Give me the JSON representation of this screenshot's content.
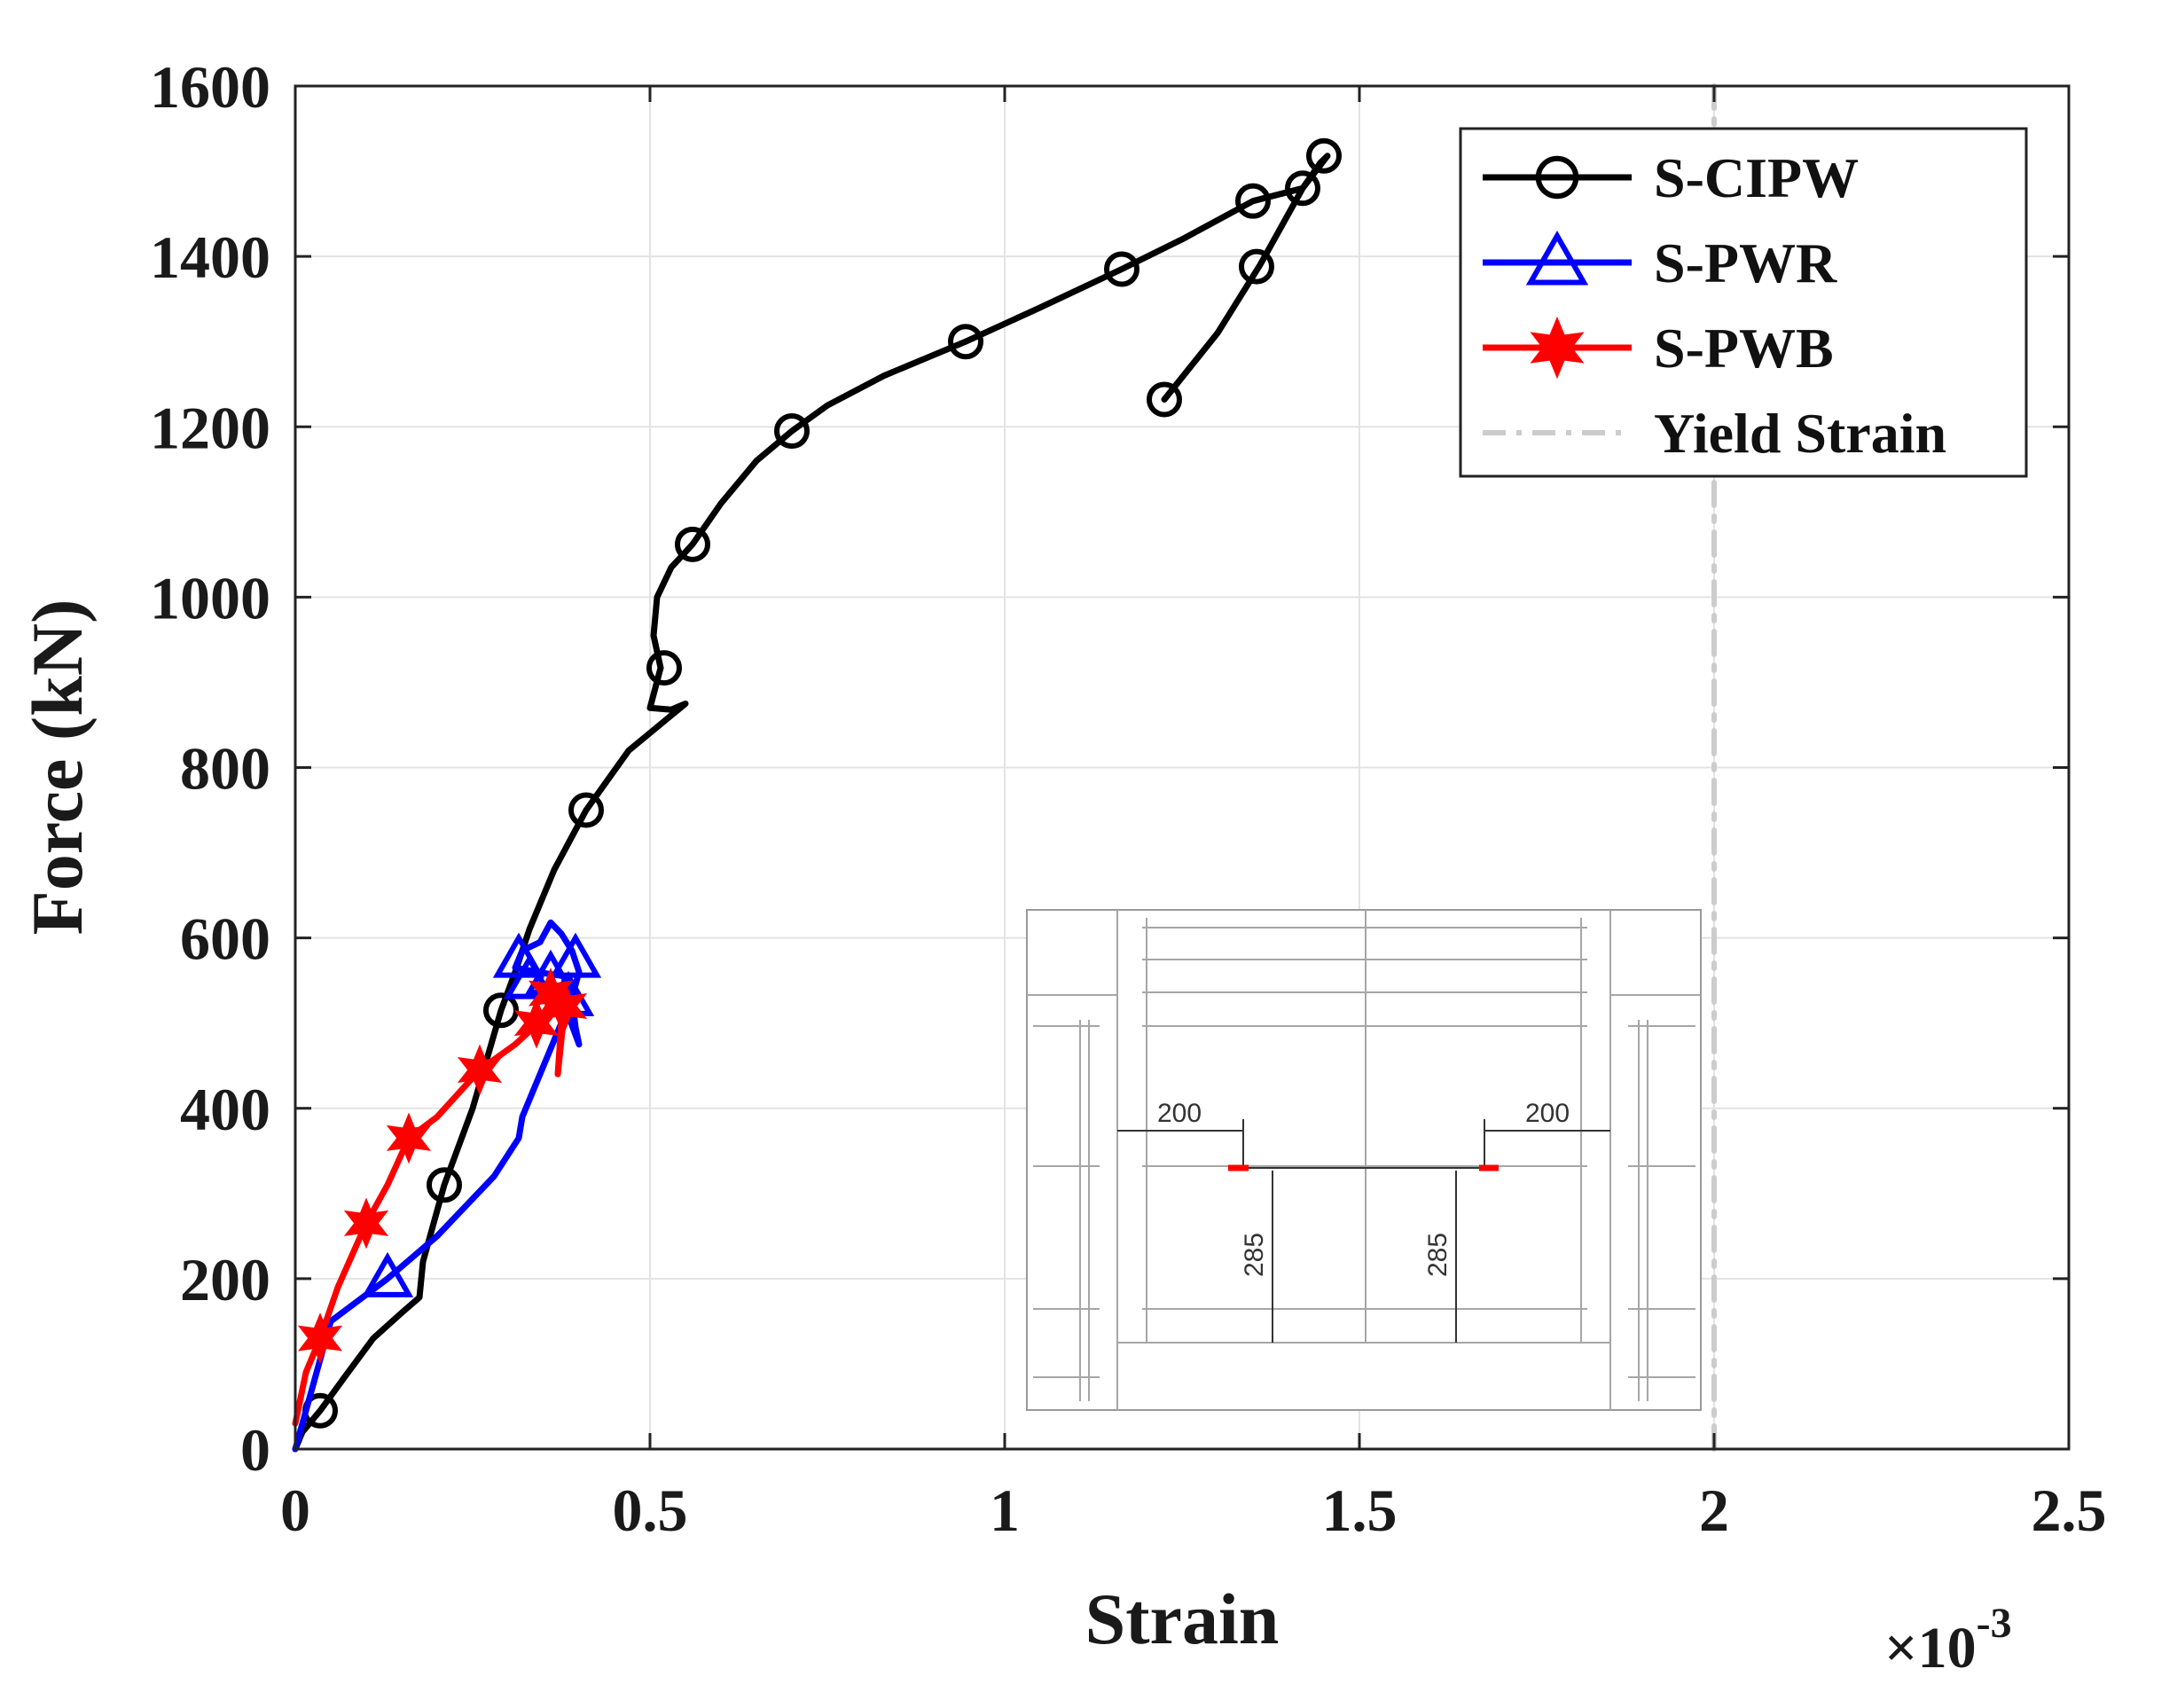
{
  "chart_data": {
    "type": "line",
    "title": "",
    "xlabel": "Strain",
    "ylabel": "Force (kN)",
    "x_multiplier_prefix": "×10",
    "x_multiplier_exponent": "-3",
    "xlim": [
      0,
      2.5
    ],
    "ylim": [
      0,
      1600
    ],
    "xticks": [
      0,
      0.5,
      1,
      1.5,
      2,
      2.5
    ],
    "xtick_labels": [
      "0",
      "0.5",
      "1",
      "1.5",
      "2",
      "2.5"
    ],
    "yticks": [
      0,
      200,
      400,
      600,
      800,
      1000,
      1200,
      1400,
      1600
    ],
    "ytick_labels": [
      "0",
      "200",
      "400",
      "600",
      "800",
      "1000",
      "1200",
      "1400",
      "1600"
    ],
    "grid": true,
    "legend_position": "top-right",
    "series": [
      {
        "name": "S-CIPW",
        "color": "#000000",
        "marker": "circle",
        "line": [
          [
            0,
            0
          ],
          [
            0.01,
            20
          ],
          [
            0.035,
            45
          ],
          [
            0.07,
            85
          ],
          [
            0.11,
            130
          ],
          [
            0.15,
            160
          ],
          [
            0.175,
            178
          ],
          [
            0.18,
            220
          ],
          [
            0.21,
            310
          ],
          [
            0.25,
            400
          ],
          [
            0.29,
            515
          ],
          [
            0.31,
            560
          ],
          [
            0.33,
            610
          ],
          [
            0.365,
            680
          ],
          [
            0.41,
            750
          ],
          [
            0.47,
            820
          ],
          [
            0.55,
            875
          ],
          [
            0.53,
            868
          ],
          [
            0.5,
            870
          ],
          [
            0.515,
            917
          ],
          [
            0.505,
            955
          ],
          [
            0.51,
            1000
          ],
          [
            0.53,
            1035
          ],
          [
            0.56,
            1062
          ],
          [
            0.6,
            1110
          ],
          [
            0.65,
            1160
          ],
          [
            0.7,
            1195
          ],
          [
            0.75,
            1225
          ],
          [
            0.83,
            1260
          ],
          [
            0.945,
            1300
          ],
          [
            1.05,
            1340
          ],
          [
            1.165,
            1385
          ],
          [
            1.25,
            1420
          ],
          [
            1.35,
            1465
          ],
          [
            1.42,
            1480
          ],
          [
            1.445,
            1510
          ],
          [
            1.455,
            1518
          ],
          [
            1.42,
            1480
          ],
          [
            1.36,
            1390
          ],
          [
            1.3,
            1310
          ],
          [
            1.225,
            1232
          ]
        ],
        "markers": [
          [
            0.035,
            45
          ],
          [
            0.21,
            310
          ],
          [
            0.29,
            515
          ],
          [
            0.41,
            750
          ],
          [
            0.52,
            917
          ],
          [
            0.56,
            1062
          ],
          [
            0.7,
            1195
          ],
          [
            0.945,
            1300
          ],
          [
            1.165,
            1385
          ],
          [
            1.35,
            1465
          ],
          [
            1.45,
            1518
          ],
          [
            1.42,
            1480
          ],
          [
            1.355,
            1388
          ],
          [
            1.225,
            1232
          ]
        ]
      },
      {
        "name": "S-PWR",
        "color": "#0000ff",
        "marker": "triangle",
        "line": [
          [
            0,
            0
          ],
          [
            0.02,
            60
          ],
          [
            0.05,
            150
          ],
          [
            0.13,
            200
          ],
          [
            0.2,
            250
          ],
          [
            0.28,
            320
          ],
          [
            0.315,
            365
          ],
          [
            0.32,
            390
          ],
          [
            0.35,
            450
          ],
          [
            0.375,
            500
          ],
          [
            0.38,
            555
          ],
          [
            0.34,
            560
          ],
          [
            0.31,
            565
          ],
          [
            0.32,
            585
          ],
          [
            0.345,
            595
          ],
          [
            0.36,
            618
          ],
          [
            0.375,
            605
          ],
          [
            0.39,
            585
          ],
          [
            0.4,
            560
          ],
          [
            0.39,
            530
          ],
          [
            0.395,
            495
          ],
          [
            0.4,
            475
          ],
          [
            0.38,
            520
          ],
          [
            0.375,
            545
          ]
        ],
        "markers": [
          [
            0.13,
            200
          ],
          [
            0.315,
            575
          ],
          [
            0.33,
            550
          ],
          [
            0.36,
            555
          ],
          [
            0.395,
            575
          ],
          [
            0.385,
            530
          ]
        ]
      },
      {
        "name": "S-PWB",
        "color": "#ff0000",
        "marker": "star",
        "line": [
          [
            0,
            30
          ],
          [
            0.015,
            90
          ],
          [
            0.035,
            130
          ],
          [
            0.06,
            190
          ],
          [
            0.1,
            265
          ],
          [
            0.13,
            310
          ],
          [
            0.16,
            365
          ],
          [
            0.2,
            390
          ],
          [
            0.26,
            445
          ],
          [
            0.31,
            475
          ],
          [
            0.34,
            498
          ],
          [
            0.36,
            525
          ],
          [
            0.37,
            540
          ],
          [
            0.38,
            520
          ],
          [
            0.375,
            480
          ],
          [
            0.37,
            440
          ],
          [
            0.375,
            500
          ],
          [
            0.365,
            520
          ]
        ],
        "markers": [
          [
            0.035,
            130
          ],
          [
            0.1,
            265
          ],
          [
            0.16,
            365
          ],
          [
            0.26,
            445
          ],
          [
            0.34,
            500
          ],
          [
            0.36,
            535
          ],
          [
            0.38,
            520
          ]
        ]
      },
      {
        "name": "Yield Strain",
        "color": "#cccccc",
        "marker": "none",
        "style": "dash-dot",
        "line": [
          [
            2,
            0
          ],
          [
            2,
            1600
          ]
        ]
      }
    ],
    "inset": {
      "description_labels": [
        "200",
        "200",
        "285",
        "285"
      ],
      "marker_color": "#ff0000"
    }
  }
}
